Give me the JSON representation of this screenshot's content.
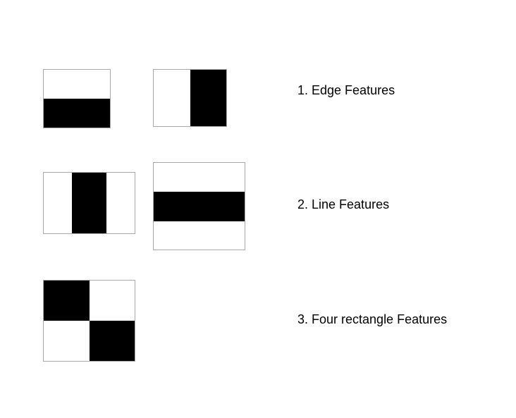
{
  "labels": {
    "edge": "1. Edge Features",
    "line": "2. Line Features",
    "four": "3. Four rectangle Features"
  },
  "colors": {
    "dark": "#000000",
    "light": "#ffffff",
    "border": "#a8a8a8"
  }
}
